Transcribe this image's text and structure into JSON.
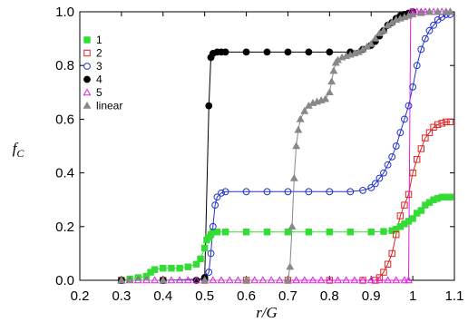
{
  "chart_data": {
    "type": "line",
    "xlabel": "r/G",
    "ylabel": "f",
    "ylabel_sub": "C",
    "xlim": [
      0.2,
      1.1
    ],
    "ylim": [
      0.0,
      1.0
    ],
    "xticks": [
      "0.2",
      "0.3",
      "0.4",
      "0.5",
      "0.6",
      "0.7",
      "0.8",
      "0.9",
      "1",
      "1.1"
    ],
    "yticks": [
      "0.0",
      "0.2",
      "0.4",
      "0.6",
      "0.8",
      "1.0"
    ],
    "grid": false,
    "legend_position": "top-left",
    "series": [
      {
        "name": "1",
        "marker": "filled-square",
        "color": "#33dd33",
        "x": [
          0.3,
          0.32,
          0.34,
          0.36,
          0.37,
          0.38,
          0.4,
          0.42,
          0.44,
          0.46,
          0.48,
          0.49,
          0.5,
          0.505,
          0.51,
          0.515,
          0.52,
          0.53,
          0.55,
          0.6,
          0.65,
          0.7,
          0.75,
          0.8,
          0.85,
          0.9,
          0.93,
          0.95,
          0.96,
          0.97,
          0.98,
          0.99,
          1.0,
          1.01,
          1.02,
          1.03,
          1.04,
          1.05,
          1.06,
          1.07,
          1.08,
          1.09
        ],
        "y": [
          0.0,
          0.005,
          0.01,
          0.015,
          0.03,
          0.04,
          0.045,
          0.045,
          0.045,
          0.05,
          0.06,
          0.08,
          0.12,
          0.15,
          0.16,
          0.17,
          0.18,
          0.18,
          0.18,
          0.18,
          0.18,
          0.18,
          0.18,
          0.18,
          0.18,
          0.18,
          0.182,
          0.185,
          0.19,
          0.2,
          0.21,
          0.22,
          0.23,
          0.25,
          0.26,
          0.28,
          0.29,
          0.3,
          0.305,
          0.31,
          0.31,
          0.31
        ]
      },
      {
        "name": "2",
        "marker": "open-square",
        "color": "#dd2222",
        "x": [
          0.3,
          0.4,
          0.5,
          0.6,
          0.7,
          0.8,
          0.88,
          0.91,
          0.92,
          0.93,
          0.94,
          0.95,
          0.96,
          0.97,
          0.98,
          0.99,
          1.0,
          1.01,
          1.02,
          1.03,
          1.04,
          1.05,
          1.06,
          1.07,
          1.08,
          1.09
        ],
        "y": [
          0.0,
          0.0,
          0.0,
          0.0,
          0.0,
          0.0,
          0.0,
          0.0,
          0.01,
          0.03,
          0.06,
          0.1,
          0.17,
          0.24,
          0.28,
          0.32,
          0.4,
          0.45,
          0.49,
          0.53,
          0.55,
          0.57,
          0.58,
          0.585,
          0.59,
          0.59
        ]
      },
      {
        "name": "3",
        "marker": "open-circle",
        "color": "#2233cc",
        "x": [
          0.3,
          0.4,
          0.5,
          0.51,
          0.515,
          0.52,
          0.525,
          0.53,
          0.54,
          0.55,
          0.6,
          0.65,
          0.7,
          0.75,
          0.8,
          0.85,
          0.88,
          0.9,
          0.91,
          0.92,
          0.93,
          0.94,
          0.95,
          0.96,
          0.97,
          0.98,
          0.99,
          1.0,
          1.01,
          1.02,
          1.03,
          1.04,
          1.05,
          1.06,
          1.07,
          1.08,
          1.09
        ],
        "y": [
          0.0,
          0.0,
          0.005,
          0.03,
          0.1,
          0.2,
          0.28,
          0.31,
          0.325,
          0.33,
          0.33,
          0.33,
          0.33,
          0.33,
          0.33,
          0.33,
          0.335,
          0.345,
          0.36,
          0.38,
          0.4,
          0.43,
          0.46,
          0.5,
          0.55,
          0.6,
          0.65,
          0.72,
          0.8,
          0.86,
          0.9,
          0.93,
          0.95,
          0.97,
          0.98,
          0.99,
          0.99
        ]
      },
      {
        "name": "4",
        "marker": "filled-circle",
        "color": "#000000",
        "x": [
          0.3,
          0.4,
          0.48,
          0.5,
          0.51,
          0.515,
          0.52,
          0.53,
          0.54,
          0.55,
          0.6,
          0.65,
          0.7,
          0.75,
          0.8,
          0.85,
          0.88,
          0.9,
          0.91,
          0.92,
          0.93,
          0.94,
          0.95,
          0.96,
          0.97,
          0.98,
          0.99,
          1.0
        ],
        "y": [
          0.0,
          0.0,
          0.0,
          0.01,
          0.65,
          0.83,
          0.845,
          0.85,
          0.85,
          0.85,
          0.85,
          0.85,
          0.85,
          0.85,
          0.85,
          0.85,
          0.86,
          0.875,
          0.89,
          0.91,
          0.93,
          0.95,
          0.96,
          0.975,
          0.985,
          0.99,
          0.995,
          1.0
        ]
      },
      {
        "name": "5",
        "marker": "open-triangle",
        "color": "#dd22dd",
        "x": [
          0.3,
          0.32,
          0.34,
          0.36,
          0.38,
          0.4,
          0.42,
          0.44,
          0.46,
          0.48,
          0.5,
          0.52,
          0.54,
          0.56,
          0.58,
          0.6,
          0.62,
          0.64,
          0.66,
          0.68,
          0.7,
          0.72,
          0.74,
          0.76,
          0.78,
          0.8,
          0.82,
          0.84,
          0.86,
          0.88,
          0.9,
          0.92,
          0.94,
          0.96,
          0.98,
          0.99,
          0.995,
          1.0,
          1.01,
          1.02,
          1.03,
          1.04,
          1.05,
          1.06,
          1.07,
          1.08,
          1.09
        ],
        "y": [
          0,
          0,
          0,
          0,
          0,
          0,
          0,
          0,
          0,
          0,
          0,
          0,
          0,
          0,
          0,
          0,
          0,
          0,
          0,
          0,
          0,
          0,
          0,
          0,
          0,
          0,
          0,
          0,
          0,
          0,
          0,
          0,
          0,
          0,
          0,
          0.0,
          1.0,
          1.0,
          1.0,
          1.0,
          1.0,
          1.0,
          1.0,
          1.0,
          1.0,
          1.0,
          1.0
        ]
      },
      {
        "name": "linear",
        "marker": "filled-triangle",
        "color": "#888888",
        "x": [
          0.3,
          0.4,
          0.5,
          0.6,
          0.7,
          0.705,
          0.71,
          0.715,
          0.72,
          0.725,
          0.73,
          0.74,
          0.75,
          0.76,
          0.77,
          0.78,
          0.79,
          0.8,
          0.805,
          0.81,
          0.815,
          0.82,
          0.83,
          0.84,
          0.85,
          0.86,
          0.87,
          0.88,
          0.89,
          0.9,
          0.91,
          0.92,
          0.93,
          0.94,
          0.95,
          0.96,
          0.97,
          0.98,
          0.99,
          1.0,
          1.02,
          1.04,
          1.06,
          1.08,
          1.09
        ],
        "y": [
          0.0,
          0.0,
          0.0,
          0.0,
          0.0,
          0.05,
          0.2,
          0.38,
          0.5,
          0.56,
          0.6,
          0.63,
          0.65,
          0.66,
          0.665,
          0.67,
          0.675,
          0.7,
          0.74,
          0.78,
          0.81,
          0.82,
          0.83,
          0.835,
          0.84,
          0.845,
          0.85,
          0.86,
          0.87,
          0.88,
          0.9,
          0.92,
          0.93,
          0.95,
          0.96,
          0.97,
          0.975,
          0.98,
          0.985,
          0.99,
          0.995,
          1.0,
          1.0,
          1.0,
          1.0
        ]
      }
    ]
  }
}
